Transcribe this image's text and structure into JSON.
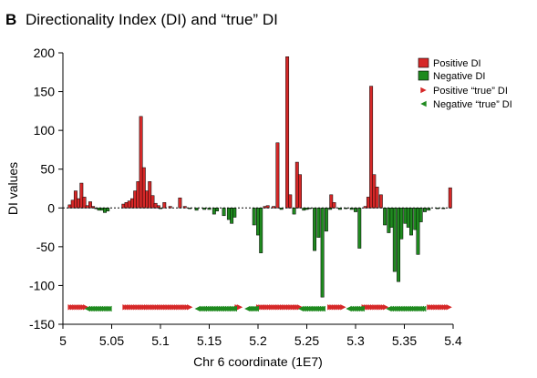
{
  "chart_data": {
    "type": "bar",
    "panel_label": "B",
    "title": "Directionality Index (DI) and “true” DI",
    "xlabel": "Chr 6 coordinate (1E7)",
    "ylabel": "DI values",
    "xlim": [
      5,
      5.4
    ],
    "ylim": [
      -150,
      200
    ],
    "xticks": [
      "5",
      "5.05",
      "5.1",
      "5.15",
      "5.2",
      "5.25",
      "5.3",
      "5.35",
      "5.4"
    ],
    "yticks": [
      "200",
      "150",
      "100",
      "50",
      "0",
      "-50",
      "-100",
      "-150"
    ],
    "grid": false,
    "legend_position": "top-right",
    "colors": {
      "positive": "#d62828",
      "negative": "#1f8a1f",
      "outline": "#000000"
    },
    "series": [
      {
        "name": "Positive DI",
        "points": [
          [
            5.007,
            4
          ],
          [
            5.01,
            10
          ],
          [
            5.013,
            22
          ],
          [
            5.016,
            12
          ],
          [
            5.019,
            32
          ],
          [
            5.022,
            14
          ],
          [
            5.025,
            3
          ],
          [
            5.028,
            8
          ],
          [
            5.031,
            2
          ],
          [
            5.062,
            5
          ],
          [
            5.065,
            7
          ],
          [
            5.068,
            9
          ],
          [
            5.071,
            12
          ],
          [
            5.074,
            22
          ],
          [
            5.077,
            34
          ],
          [
            5.08,
            118
          ],
          [
            5.083,
            52
          ],
          [
            5.086,
            22
          ],
          [
            5.089,
            34
          ],
          [
            5.092,
            16
          ],
          [
            5.095,
            6
          ],
          [
            5.098,
            3
          ],
          [
            5.104,
            7
          ],
          [
            5.11,
            2
          ],
          [
            5.12,
            13
          ],
          [
            5.125,
            2
          ],
          [
            5.207,
            2
          ],
          [
            5.21,
            3
          ],
          [
            5.216,
            2
          ],
          [
            5.22,
            84
          ],
          [
            5.23,
            195
          ],
          [
            5.233,
            17
          ],
          [
            5.24,
            59
          ],
          [
            5.243,
            43
          ],
          [
            5.275,
            17
          ],
          [
            5.278,
            7
          ],
          [
            5.31,
            2
          ],
          [
            5.313,
            14
          ],
          [
            5.316,
            157
          ],
          [
            5.319,
            43
          ],
          [
            5.322,
            27
          ],
          [
            5.326,
            17
          ],
          [
            5.397,
            26
          ]
        ]
      },
      {
        "name": "Negative DI",
        "points": [
          [
            5.034,
            -1
          ],
          [
            5.037,
            -3
          ],
          [
            5.04,
            -3
          ],
          [
            5.043,
            -6
          ],
          [
            5.046,
            -4
          ],
          [
            5.1,
            -1
          ],
          [
            5.13,
            -1
          ],
          [
            5.137,
            -3
          ],
          [
            5.145,
            -2
          ],
          [
            5.15,
            -2
          ],
          [
            5.155,
            -8
          ],
          [
            5.158,
            -4
          ],
          [
            5.165,
            -10
          ],
          [
            5.17,
            -15
          ],
          [
            5.173,
            -20
          ],
          [
            5.176,
            -12
          ],
          [
            5.196,
            -22
          ],
          [
            5.2,
            -35
          ],
          [
            5.203,
            -58
          ],
          [
            5.224,
            -2
          ],
          [
            5.237,
            -8
          ],
          [
            5.247,
            -3
          ],
          [
            5.25,
            -2
          ],
          [
            5.253,
            -1
          ],
          [
            5.258,
            -55
          ],
          [
            5.262,
            -38
          ],
          [
            5.266,
            -115
          ],
          [
            5.27,
            -30
          ],
          [
            5.274,
            -2
          ],
          [
            5.284,
            -2
          ],
          [
            5.29,
            -1
          ],
          [
            5.296,
            -2
          ],
          [
            5.3,
            -5
          ],
          [
            5.304,
            -52
          ],
          [
            5.33,
            -22
          ],
          [
            5.334,
            -32
          ],
          [
            5.337,
            -25
          ],
          [
            5.34,
            -82
          ],
          [
            5.344,
            -95
          ],
          [
            5.347,
            -40
          ],
          [
            5.351,
            -20
          ],
          [
            5.354,
            -25
          ],
          [
            5.357,
            -35
          ],
          [
            5.361,
            -28
          ],
          [
            5.364,
            -60
          ],
          [
            5.367,
            -18
          ],
          [
            5.371,
            -5
          ],
          [
            5.375,
            -3
          ],
          [
            5.384,
            -1
          ],
          [
            5.39,
            -1
          ]
        ]
      },
      {
        "name": "Positive “true” DI",
        "y": -128,
        "segments": [
          [
            5.007,
            5.024
          ],
          [
            5.063,
            5.131
          ],
          [
            5.178,
            5.183
          ],
          [
            5.2,
            5.243
          ],
          [
            5.273,
            5.289
          ],
          [
            5.308,
            5.333
          ],
          [
            5.375,
            5.398
          ]
        ]
      },
      {
        "name": "Negative “true” DI",
        "y": -130,
        "segments": [
          [
            5.024,
            5.048
          ],
          [
            5.137,
            5.176
          ],
          [
            5.188,
            5.2
          ],
          [
            5.243,
            5.268
          ],
          [
            5.292,
            5.308
          ],
          [
            5.333,
            5.371
          ]
        ]
      }
    ]
  }
}
